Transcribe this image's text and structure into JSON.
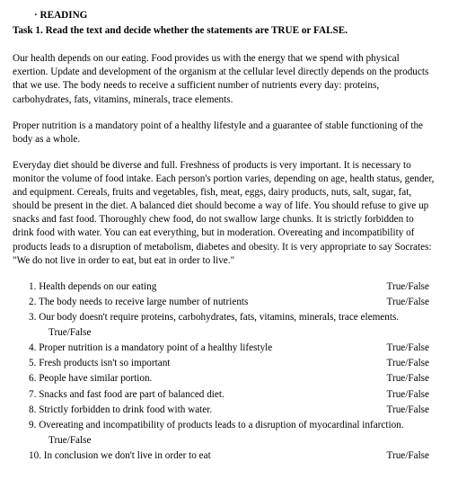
{
  "heading_prefix": "·",
  "heading": "READING",
  "task": "Task 1. Read the text and decide whether the statements are TRUE or FALSE.",
  "paragraphs": [
    "Our health depends on our eating. Food provides us with the energy that we spend with physical exertion. Update and development of the organism at the cellular level directly depends on the products that we use. The body needs to receive a sufficient number of nutrients every day: proteins, carbohydrates, fats, vitamins, minerals, trace elements.",
    "Proper nutrition is a mandatory point of a healthy lifestyle and a guarantee of stable functioning of the body as a whole.",
    "Everyday diet should be diverse and full. Freshness of products is very important. It is necessary to monitor the volume of food intake. Each person's portion varies, depending on age, health status, gender, and equipment. Cereals, fruits and vegetables, fish, meat, eggs, dairy products, nuts, salt, sugar, fat, should be present in the diet. A balanced diet should become a way of life. You should refuse to give up snacks and fast food. Thoroughly chew food, do not swallow large chunks. It is strictly forbidden to drink food with water. You can eat everything, but in moderation. Overeating and incompatibility of products leads to a disruption of metabolism, diabetes and obesity. It is very appropriate to say Socrates: \"We do not live in order to eat, but eat in order to live.\""
  ],
  "tf": "True/False",
  "questions": {
    "q1": "1. Health depends on our eating",
    "q2": "2. The body needs to receive large number of nutrients",
    "q3": "3. Our body doesn't require proteins, carbohydrates, fats, vitamins, minerals, trace elements.",
    "q4": "4. Proper nutrition is a mandatory point of a healthy lifestyle",
    "q5": "5. Fresh products isn't so important",
    "q6": "6. People have similar portion.",
    "q7": "7. Snacks and fast food are part of balanced diet.",
    "q8": "8. Strictly forbidden to drink food with water.",
    "q9": "9. Overeating and incompatibility of products leads to a disruption of myocardinal infarction.",
    "q10": "10. In conclusion we don't  live in order to eat"
  }
}
